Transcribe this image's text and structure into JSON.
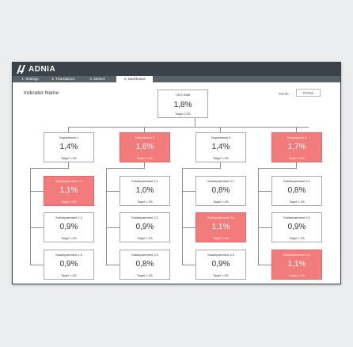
{
  "app": {
    "brand": "ADNIA"
  },
  "tabs": [
    {
      "label": "1. Settings"
    },
    {
      "label": "2. Translations"
    },
    {
      "label": "3. Metrics"
    },
    {
      "label": "4. Dashboard",
      "active": true
    }
  ],
  "header": {
    "indicator_name": "Indicator Name",
    "month_label": "Month:",
    "month_value": "TOTAL"
  },
  "colors": {
    "alert": "#f27b7b",
    "titlebar": "#3b4249",
    "tabbar": "#596169"
  },
  "ceo": {
    "name": "CEO Staff",
    "value": "1,8%",
    "target": "Target: 2,0%"
  },
  "departments": [
    {
      "name": "Department 1",
      "value": "1,4%",
      "target": "Target: 1,5%",
      "alert": false,
      "subs": [
        {
          "name": "Subdepartment 1.1",
          "value": "1,1%",
          "target": "Target: 1,0%",
          "alert": true
        },
        {
          "name": "Subdepartment 1.2",
          "value": "0,9%",
          "target": "Target: 1,0%",
          "alert": false
        },
        {
          "name": "Subdepartment 1.3",
          "value": "0,9%",
          "target": "Target: 1,0%",
          "alert": false
        }
      ]
    },
    {
      "name": "Department 2",
      "value": "1,6%",
      "target": "Target: 1,5%",
      "alert": true,
      "subs": [
        {
          "name": "Subdepartment 2.1",
          "value": "1,0%",
          "target": "Target: 1,0%",
          "alert": false
        },
        {
          "name": "Subdepartment 2.2",
          "value": "0,9%",
          "target": "Target: 1,0%",
          "alert": false
        },
        {
          "name": "Subdepartment 2.3",
          "value": "0,8%",
          "target": "Target: 1,0%",
          "alert": false
        }
      ]
    },
    {
      "name": "Department 3",
      "value": "1,4%",
      "target": "Target: 1,5%",
      "alert": false,
      "subs": [
        {
          "name": "Subdepartment 3.1",
          "value": "0,8%",
          "target": "Target: 1,0%",
          "alert": false
        },
        {
          "name": "Subdepartment 3.2",
          "value": "1,1%",
          "target": "Target: 1,0%",
          "alert": true
        },
        {
          "name": "Subdepartment 3.3",
          "value": "0,9%",
          "target": "Target: 1,0%",
          "alert": false
        }
      ]
    },
    {
      "name": "Department 4",
      "value": "1,7%",
      "target": "Target: 1,5%",
      "alert": true,
      "subs": [
        {
          "name": "Subdepartment 4.1",
          "value": "0,8%",
          "target": "Target: 1,0%",
          "alert": false
        },
        {
          "name": "Subdepartment 4.2",
          "value": "0,9%",
          "target": "Target: 1,0%",
          "alert": false
        },
        {
          "name": "Subdepartment 4.3",
          "value": "1,1%",
          "target": "Target: 1,0%",
          "alert": true
        }
      ]
    }
  ]
}
